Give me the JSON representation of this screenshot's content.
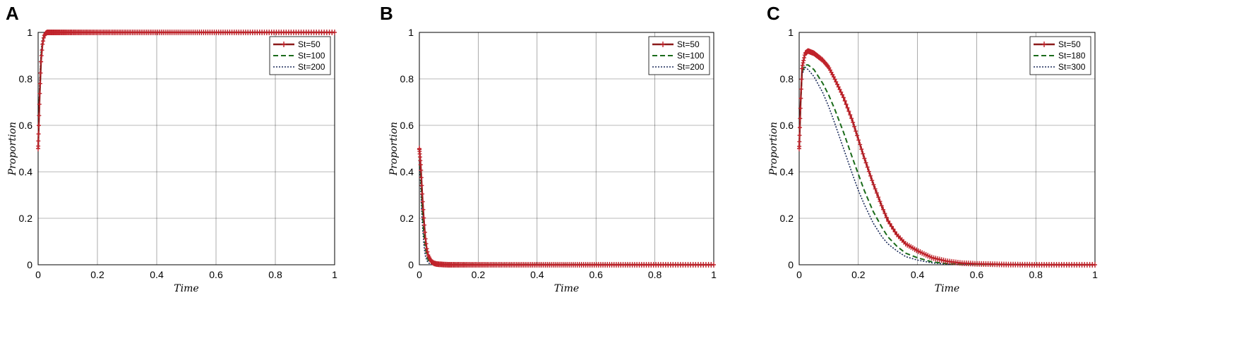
{
  "colors": {
    "series1": "#8b1a1a",
    "series1_marker": "#c0232b",
    "series2": "#1a6b1a",
    "series3": "#1a2a5a",
    "grid": "#000000"
  },
  "chart_data": [
    {
      "type": "line",
      "panel": "A",
      "xlabel": "Time",
      "ylabel": "Proportion",
      "xlim": [
        0,
        1
      ],
      "ylim": [
        0,
        1
      ],
      "xticks": [
        "0",
        "0.2",
        "0.4",
        "0.6",
        "0.8",
        "1"
      ],
      "yticks": [
        "0",
        "0.2",
        "0.4",
        "0.6",
        "0.8",
        "1"
      ],
      "grid": true,
      "legend_position": "top-right",
      "series": [
        {
          "name": "St=50",
          "style": "solid-marker",
          "x": [
            0,
            0.005,
            0.01,
            0.015,
            0.02,
            0.025,
            0.03,
            0.05,
            0.1,
            0.2,
            0.4,
            0.6,
            0.8,
            1
          ],
          "y": [
            0.5,
            0.72,
            0.88,
            0.95,
            0.985,
            0.995,
            1,
            1,
            1,
            1,
            1,
            1,
            1,
            1
          ]
        },
        {
          "name": "St=100",
          "style": "dashed",
          "x": [
            0,
            0.005,
            0.01,
            0.015,
            0.02,
            0.025,
            0.03,
            0.05,
            1
          ],
          "y": [
            0.5,
            0.75,
            0.9,
            0.96,
            0.99,
            0.997,
            1,
            1,
            1
          ]
        },
        {
          "name": "St=200",
          "style": "dotted",
          "x": [
            0,
            0.005,
            0.01,
            0.015,
            0.02,
            0.025,
            0.03,
            0.05,
            1
          ],
          "y": [
            0.5,
            0.78,
            0.92,
            0.97,
            0.99,
            0.998,
            1,
            1,
            1
          ]
        }
      ]
    },
    {
      "type": "line",
      "panel": "B",
      "xlabel": "Time",
      "ylabel": "Proportion",
      "xlim": [
        0,
        1
      ],
      "ylim": [
        0,
        1
      ],
      "xticks": [
        "0",
        "0.2",
        "0.4",
        "0.6",
        "0.8",
        "1"
      ],
      "yticks": [
        "0",
        "0.2",
        "0.4",
        "0.6",
        "0.8",
        "1"
      ],
      "grid": true,
      "legend_position": "top-right",
      "series": [
        {
          "name": "St=50",
          "style": "solid-marker",
          "x": [
            0,
            0.005,
            0.01,
            0.015,
            0.02,
            0.025,
            0.03,
            0.04,
            0.05,
            0.06,
            0.08,
            0.1,
            0.2,
            0.4,
            0.6,
            0.8,
            1
          ],
          "y": [
            0.5,
            0.42,
            0.3,
            0.2,
            0.12,
            0.07,
            0.04,
            0.015,
            0.006,
            0.003,
            0.001,
            0,
            0,
            0,
            0,
            0,
            0
          ]
        },
        {
          "name": "St=100",
          "style": "dashed",
          "x": [
            0,
            0.005,
            0.01,
            0.015,
            0.02,
            0.025,
            0.03,
            0.04,
            0.05,
            1
          ],
          "y": [
            0.5,
            0.38,
            0.24,
            0.14,
            0.08,
            0.04,
            0.02,
            0.006,
            0.002,
            0
          ]
        },
        {
          "name": "St=200",
          "style": "dotted",
          "x": [
            0,
            0.005,
            0.01,
            0.015,
            0.02,
            0.025,
            0.03,
            0.04,
            1
          ],
          "y": [
            0.5,
            0.32,
            0.18,
            0.09,
            0.04,
            0.02,
            0.008,
            0.002,
            0
          ]
        }
      ]
    },
    {
      "type": "line",
      "panel": "C",
      "xlabel": "Time",
      "ylabel": "Proportion",
      "xlim": [
        0,
        1
      ],
      "ylim": [
        0,
        1
      ],
      "xticks": [
        "0",
        "0.2",
        "0.4",
        "0.6",
        "0.8",
        "1"
      ],
      "yticks": [
        "0",
        "0.2",
        "0.4",
        "0.6",
        "0.8",
        "1"
      ],
      "grid": true,
      "legend_position": "top-right",
      "series": [
        {
          "name": "St=50",
          "style": "solid-marker",
          "x": [
            0,
            0.005,
            0.01,
            0.02,
            0.03,
            0.05,
            0.08,
            0.1,
            0.12,
            0.15,
            0.18,
            0.2,
            0.22,
            0.25,
            0.28,
            0.3,
            0.33,
            0.36,
            0.4,
            0.45,
            0.5,
            0.55,
            0.6,
            0.7,
            0.8,
            0.9,
            1
          ],
          "y": [
            0.5,
            0.7,
            0.85,
            0.91,
            0.92,
            0.91,
            0.88,
            0.85,
            0.8,
            0.72,
            0.62,
            0.54,
            0.46,
            0.35,
            0.25,
            0.19,
            0.13,
            0.09,
            0.06,
            0.03,
            0.015,
            0.007,
            0.004,
            0.001,
            0,
            0,
            0
          ]
        },
        {
          "name": "St=180",
          "style": "dashed",
          "x": [
            0,
            0.005,
            0.01,
            0.02,
            0.03,
            0.05,
            0.08,
            0.1,
            0.12,
            0.15,
            0.18,
            0.2,
            0.22,
            0.25,
            0.28,
            0.3,
            0.33,
            0.36,
            0.4,
            0.45,
            0.5,
            0.55,
            0.6,
            1
          ],
          "y": [
            0.5,
            0.7,
            0.83,
            0.86,
            0.86,
            0.84,
            0.78,
            0.73,
            0.67,
            0.57,
            0.46,
            0.39,
            0.32,
            0.23,
            0.16,
            0.12,
            0.08,
            0.05,
            0.03,
            0.012,
            0.005,
            0.002,
            0.001,
            0
          ]
        },
        {
          "name": "St=300",
          "style": "dotted",
          "x": [
            0,
            0.005,
            0.01,
            0.02,
            0.03,
            0.05,
            0.08,
            0.1,
            0.12,
            0.15,
            0.18,
            0.2,
            0.22,
            0.25,
            0.28,
            0.3,
            0.33,
            0.36,
            0.4,
            0.45,
            0.5,
            0.55,
            1
          ],
          "y": [
            0.5,
            0.7,
            0.82,
            0.85,
            0.84,
            0.81,
            0.74,
            0.68,
            0.61,
            0.5,
            0.39,
            0.32,
            0.26,
            0.18,
            0.12,
            0.09,
            0.06,
            0.035,
            0.02,
            0.008,
            0.003,
            0.001,
            0
          ]
        }
      ]
    }
  ]
}
